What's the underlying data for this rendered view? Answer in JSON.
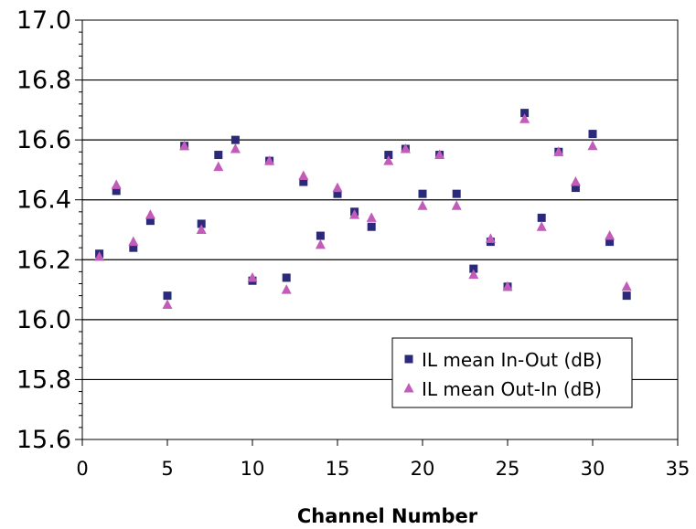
{
  "chart_data": {
    "type": "scatter",
    "title": "",
    "xlabel": "Channel Number",
    "ylabel": "",
    "xlim": [
      0,
      35
    ],
    "ylim": [
      15.6,
      17.0
    ],
    "x_ticks": [
      "0",
      "5",
      "10",
      "15",
      "20",
      "25",
      "30",
      "35"
    ],
    "y_ticks": [
      "15.6",
      "15.8",
      "16.0",
      "16.2",
      "16.4",
      "16.6",
      "16.8",
      "17.0"
    ],
    "grid": "horizontal",
    "legend_position": "bottom-right",
    "series": [
      {
        "name": "IL mean In-Out (dB)",
        "marker": "square",
        "color": "#2b2a7a",
        "x": [
          1,
          2,
          3,
          4,
          5,
          6,
          7,
          8,
          9,
          10,
          11,
          12,
          13,
          14,
          15,
          16,
          17,
          18,
          19,
          20,
          21,
          22,
          23,
          24,
          25,
          26,
          27,
          28,
          29,
          30,
          31,
          32
        ],
        "y": [
          16.22,
          16.43,
          16.24,
          16.33,
          16.08,
          16.58,
          16.32,
          16.55,
          16.6,
          16.13,
          16.53,
          16.14,
          16.46,
          16.28,
          16.42,
          16.36,
          16.31,
          16.55,
          16.57,
          16.42,
          16.55,
          16.42,
          16.17,
          16.26,
          16.11,
          16.69,
          16.34,
          16.56,
          16.44,
          16.62,
          16.26,
          16.08
        ]
      },
      {
        "name": "IL mean Out-In (dB)",
        "marker": "triangle",
        "color": "#c25cb8",
        "x": [
          1,
          2,
          3,
          4,
          5,
          6,
          7,
          8,
          9,
          10,
          11,
          12,
          13,
          14,
          15,
          16,
          17,
          18,
          19,
          20,
          21,
          22,
          23,
          24,
          25,
          26,
          27,
          28,
          29,
          30,
          31,
          32
        ],
        "y": [
          16.21,
          16.45,
          16.26,
          16.35,
          16.05,
          16.58,
          16.3,
          16.51,
          16.57,
          16.14,
          16.53,
          16.1,
          16.48,
          16.25,
          16.44,
          16.35,
          16.34,
          16.53,
          16.57,
          16.38,
          16.55,
          16.38,
          16.15,
          16.27,
          16.11,
          16.67,
          16.31,
          16.56,
          16.46,
          16.58,
          16.28,
          16.11
        ]
      }
    ]
  }
}
